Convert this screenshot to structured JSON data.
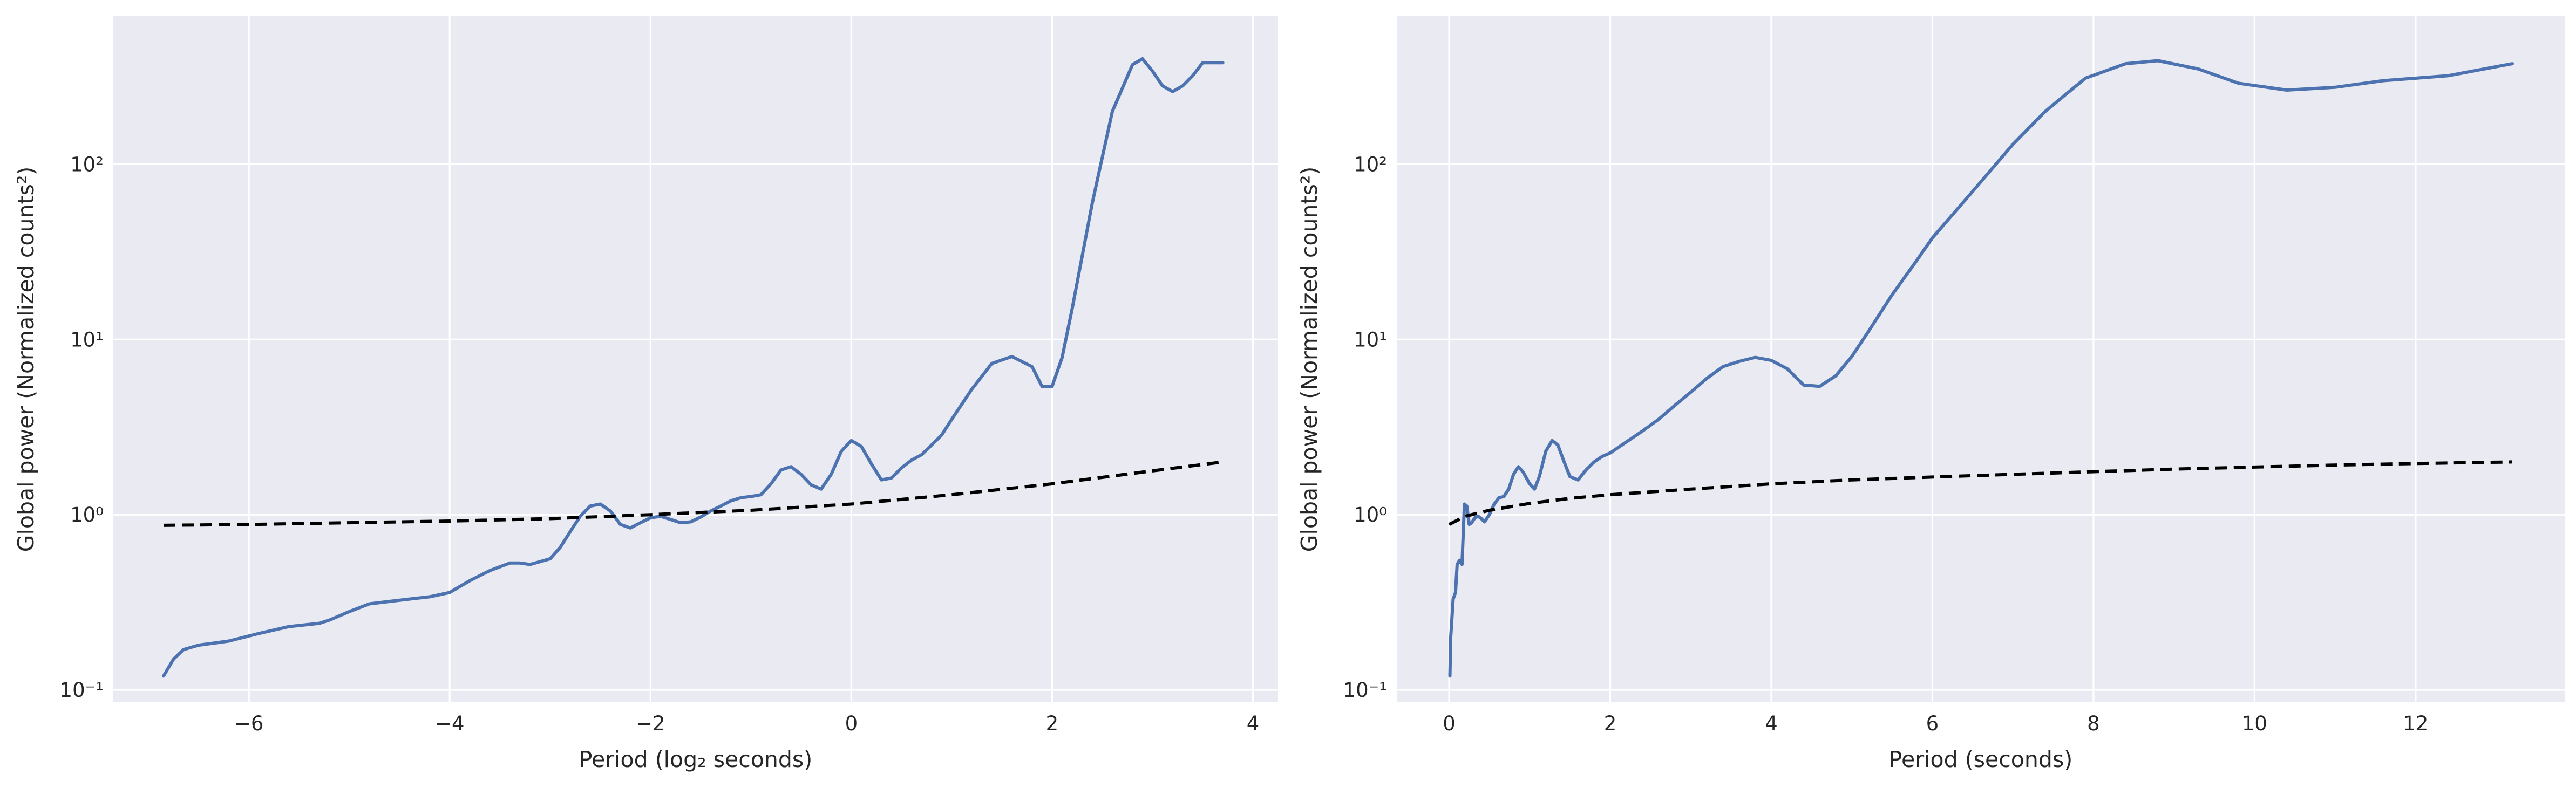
{
  "chart_data": [
    {
      "type": "line",
      "title": "",
      "xlabel": "Period (log₂ seconds)",
      "ylabel": "Global power (Normalized counts²)",
      "xscale": "linear",
      "yscale": "log",
      "xlim": [
        -7.35,
        4.25
      ],
      "ylim": [
        0.085,
        700
      ],
      "xticks": [
        -6,
        -4,
        -2,
        0,
        2,
        4
      ],
      "xtick_labels": [
        "−6",
        "−4",
        "−2",
        "0",
        "2",
        "4"
      ],
      "yticks": [
        0.1,
        1,
        10,
        100
      ],
      "ytick_labels": [
        "10⁻¹",
        "10⁰",
        "10¹",
        "10²"
      ],
      "grid": true,
      "series": [
        {
          "style": "solid",
          "color": "#4c72b0",
          "x": [
            -6.85,
            -6.75,
            -6.65,
            -6.5,
            -6.2,
            -5.9,
            -5.6,
            -5.3,
            -5.2,
            -5.0,
            -4.8,
            -4.6,
            -4.4,
            -4.2,
            -4.0,
            -3.8,
            -3.6,
            -3.4,
            -3.3,
            -3.2,
            -3.0,
            -2.9,
            -2.8,
            -2.7,
            -2.6,
            -2.5,
            -2.4,
            -2.3,
            -2.2,
            -2.1,
            -2.0,
            -1.9,
            -1.8,
            -1.7,
            -1.6,
            -1.5,
            -1.4,
            -1.3,
            -1.2,
            -1.1,
            -1.0,
            -0.9,
            -0.8,
            -0.7,
            -0.6,
            -0.5,
            -0.4,
            -0.3,
            -0.2,
            -0.1,
            0.0,
            0.1,
            0.2,
            0.3,
            0.4,
            0.5,
            0.6,
            0.7,
            0.8,
            0.9,
            1.0,
            1.2,
            1.4,
            1.6,
            1.8,
            1.9,
            2.0,
            2.1,
            2.2,
            2.3,
            2.4,
            2.6,
            2.8,
            2.9,
            3.0,
            3.1,
            3.2,
            3.3,
            3.4,
            3.5,
            3.6,
            3.7
          ],
          "y": [
            0.12,
            0.15,
            0.17,
            0.18,
            0.19,
            0.21,
            0.23,
            0.24,
            0.25,
            0.28,
            0.31,
            0.32,
            0.33,
            0.34,
            0.36,
            0.42,
            0.48,
            0.53,
            0.53,
            0.52,
            0.56,
            0.65,
            0.8,
            0.98,
            1.12,
            1.15,
            1.05,
            0.88,
            0.84,
            0.9,
            0.96,
            0.98,
            0.94,
            0.9,
            0.91,
            0.97,
            1.05,
            1.12,
            1.2,
            1.25,
            1.27,
            1.3,
            1.5,
            1.8,
            1.88,
            1.7,
            1.48,
            1.4,
            1.7,
            2.3,
            2.65,
            2.45,
            1.95,
            1.58,
            1.62,
            1.85,
            2.05,
            2.2,
            2.5,
            2.85,
            3.5,
            5.2,
            7.3,
            8.0,
            7.0,
            5.4,
            5.4,
            7.9,
            15,
            30,
            60,
            200,
            370,
            400,
            340,
            280,
            260,
            280,
            320,
            380,
            380,
            380
          ]
        },
        {
          "style": "dashed",
          "color": "#000000",
          "x": [
            -6.85,
            -6.0,
            -5.0,
            -4.0,
            -3.0,
            -2.0,
            -1.0,
            0.0,
            1.0,
            2.0,
            3.0,
            3.7
          ],
          "y": [
            0.87,
            0.88,
            0.9,
            0.92,
            0.95,
            1.0,
            1.06,
            1.15,
            1.3,
            1.5,
            1.78,
            2.0
          ]
        }
      ]
    },
    {
      "type": "line",
      "title": "",
      "xlabel": "Period (seconds)",
      "ylabel": "Global power (Normalized counts²)",
      "xscale": "linear",
      "yscale": "log",
      "xlim": [
        -0.65,
        13.85
      ],
      "ylim": [
        0.085,
        700
      ],
      "xticks": [
        0,
        2,
        4,
        6,
        8,
        10,
        12
      ],
      "xtick_labels": [
        "0",
        "2",
        "4",
        "6",
        "8",
        "10",
        "12"
      ],
      "yticks": [
        0.1,
        1,
        10,
        100
      ],
      "ytick_labels": [
        "10⁻¹",
        "10⁰",
        "10¹",
        "10²"
      ],
      "grid": true,
      "series": [
        {
          "style": "solid",
          "color": "#4c72b0",
          "x": [
            0.01,
            0.02,
            0.05,
            0.08,
            0.1,
            0.13,
            0.16,
            0.19,
            0.22,
            0.25,
            0.28,
            0.32,
            0.36,
            0.4,
            0.44,
            0.5,
            0.56,
            0.62,
            0.68,
            0.74,
            0.8,
            0.86,
            0.92,
            1.0,
            1.06,
            1.12,
            1.2,
            1.28,
            1.35,
            1.42,
            1.5,
            1.6,
            1.7,
            1.8,
            1.9,
            2.0,
            2.2,
            2.4,
            2.6,
            2.8,
            3.0,
            3.2,
            3.4,
            3.6,
            3.8,
            4.0,
            4.2,
            4.4,
            4.6,
            4.8,
            5.0,
            5.2,
            5.5,
            5.8,
            6.0,
            6.5,
            7.0,
            7.4,
            7.9,
            8.4,
            8.8,
            9.3,
            9.8,
            10.4,
            11.0,
            11.6,
            12.4,
            13.2
          ],
          "y": [
            0.12,
            0.2,
            0.33,
            0.36,
            0.52,
            0.55,
            0.52,
            1.15,
            1.12,
            0.88,
            0.9,
            0.96,
            0.98,
            0.95,
            0.91,
            1.0,
            1.15,
            1.25,
            1.27,
            1.4,
            1.7,
            1.88,
            1.75,
            1.5,
            1.4,
            1.65,
            2.3,
            2.65,
            2.5,
            2.05,
            1.65,
            1.58,
            1.8,
            2.0,
            2.15,
            2.25,
            2.6,
            3.0,
            3.5,
            4.2,
            5.0,
            6.0,
            7.0,
            7.5,
            7.9,
            7.6,
            6.8,
            5.5,
            5.4,
            6.2,
            8.0,
            11,
            18,
            28,
            38,
            70,
            130,
            200,
            310,
            375,
            390,
            350,
            290,
            265,
            275,
            300,
            320,
            375
          ]
        },
        {
          "style": "dashed",
          "color": "#000000",
          "x": [
            0.0,
            0.2,
            0.5,
            1.0,
            1.5,
            2.0,
            3.0,
            4.0,
            5.0,
            6.0,
            7.0,
            8.0,
            9.0,
            10.0,
            11.0,
            12.0,
            13.2
          ],
          "y": [
            0.88,
            0.98,
            1.06,
            1.16,
            1.24,
            1.3,
            1.4,
            1.5,
            1.58,
            1.64,
            1.7,
            1.76,
            1.82,
            1.87,
            1.92,
            1.96,
            2.0
          ]
        }
      ]
    }
  ]
}
